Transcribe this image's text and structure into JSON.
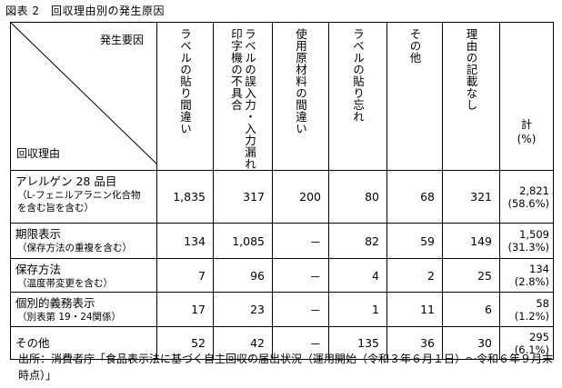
{
  "title": "図表 2　回収理由別の発生原因",
  "header": {
    "corner_top": "発生要因",
    "corner_bottom": "回収理由",
    "columns": [
      "ラベルの貼り間違い",
      "ラベルの誤入力・入力漏れ印字機の不具合",
      "使用原材料の間違い",
      "ラベルの貼り忘れ",
      "その他",
      "理由の記載なし"
    ],
    "col_lines": [
      [
        "ラベルの貼り間違い"
      ],
      [
        "ラベルの誤入力・入力漏れ",
        "印字機の不具合"
      ],
      [
        "使用原材料の間違い"
      ],
      [
        "ラベルの貼り忘れ"
      ],
      [
        "その他"
      ],
      [
        "理由の記載なし"
      ]
    ],
    "total_label": "計",
    "total_unit": "(%)"
  },
  "rows": [
    {
      "name": "アレルゲン 28 品目",
      "sub": [
        "（L-フェニルアラニン化合物",
        "を含む旨を含む）"
      ],
      "values": [
        "1,835",
        "317",
        "200",
        "80",
        "68",
        "321"
      ],
      "total": "2,821",
      "pct": "(58.6%)"
    },
    {
      "name": "期限表示",
      "sub": [
        "（保存方法の重複を含む）"
      ],
      "values": [
        "134",
        "1,085",
        "－",
        "82",
        "59",
        "149"
      ],
      "total": "1,509",
      "pct": "(31.3%)"
    },
    {
      "name": "保存方法",
      "sub": [
        "（温度帯変更を含む）"
      ],
      "values": [
        "7",
        "96",
        "－",
        "4",
        "2",
        "25"
      ],
      "total": "134",
      "pct": "(2.8%)"
    },
    {
      "name": "個別的義務表示",
      "sub": [
        "（別表第 19・24関係）"
      ],
      "values": [
        "17",
        "23",
        "－",
        "1",
        "11",
        "6"
      ],
      "total": "58",
      "pct": "(1.2%)"
    },
    {
      "name": "その他",
      "sub": [],
      "values": [
        "52",
        "42",
        "－",
        "135",
        "36",
        "30"
      ],
      "total": "295",
      "pct": "(6.1%)"
    }
  ],
  "source": "出所：消費者庁「食品表示法に基づく自主回収の届出状況（運用開始（令和３年６月１日）～令和６年９月末時点）」"
}
